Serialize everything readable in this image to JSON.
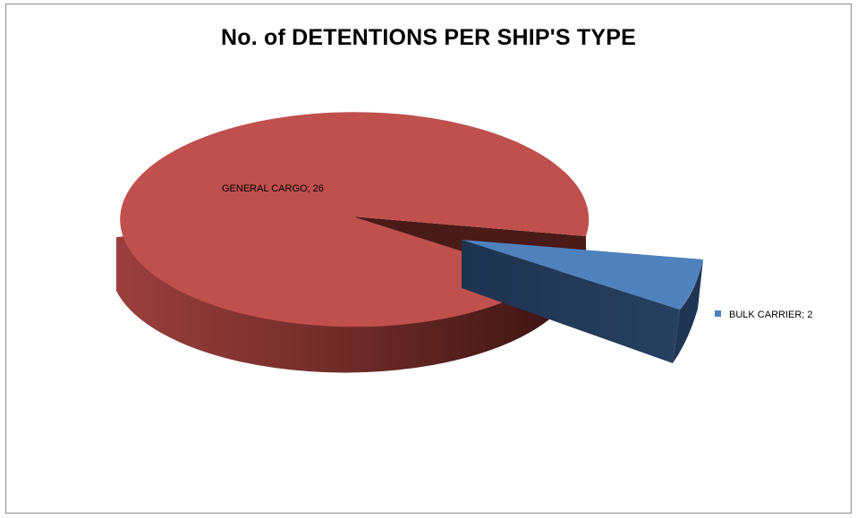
{
  "chart_data": {
    "type": "pie",
    "title": "No. of DETENTIONS PER SHIP'S TYPE",
    "categories": [
      "GENERAL CARGO",
      "BULK CARRIER"
    ],
    "values": [
      26,
      2
    ],
    "data_labels": [
      "GENERAL CARGO; 26",
      "BULK CARRIER; 2"
    ],
    "legend_placement": "right",
    "three_d": true,
    "exploded": "BULK CARRIER",
    "colors": {
      "GENERAL CARGO": "#c0504d",
      "BULK CARRIER": "#4f81bd"
    }
  },
  "legend": {
    "items": [
      {
        "label": "BULK CARRIER; 2",
        "color": "#4f81bd"
      }
    ]
  }
}
